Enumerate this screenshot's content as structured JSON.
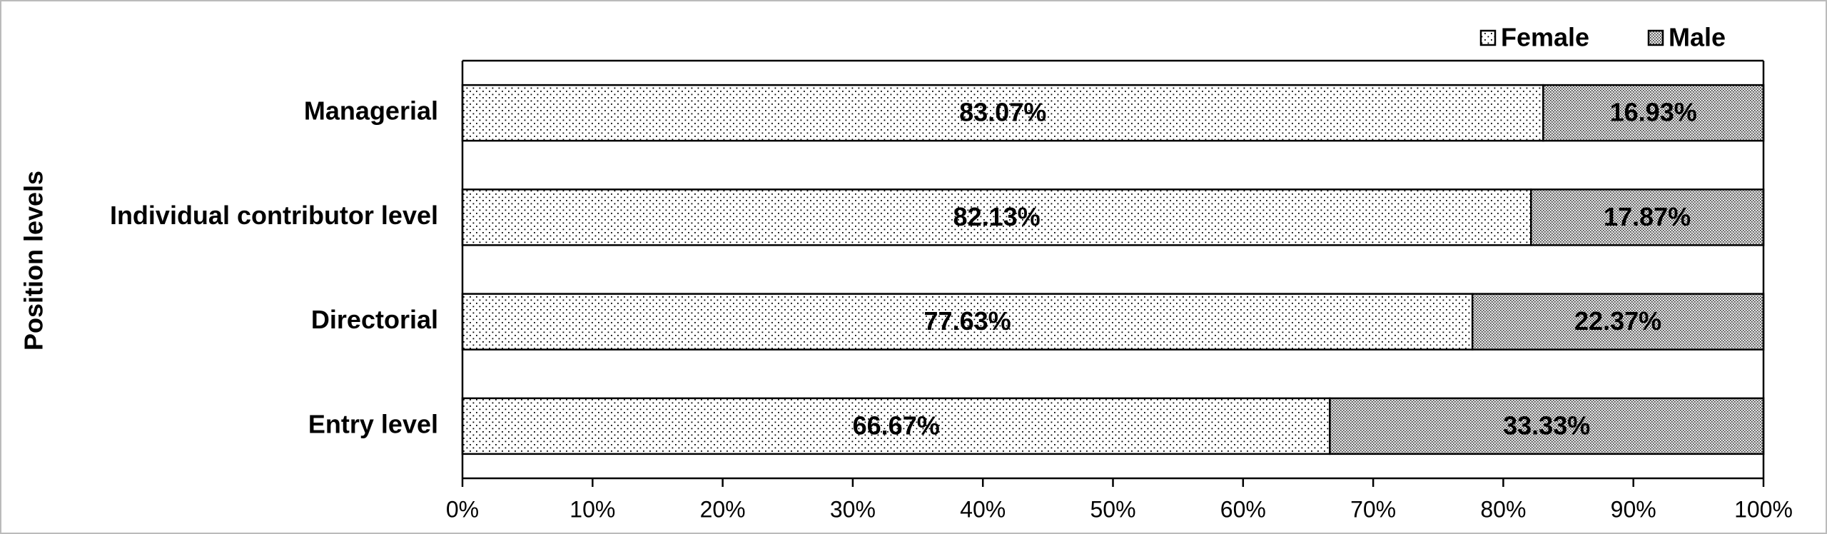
{
  "chart_data": {
    "type": "stacked-barh",
    "y_label": "Position levels",
    "categories": [
      "Managerial",
      "Individual contributor level",
      "Directorial",
      "Entry level"
    ],
    "series": [
      {
        "name": "Female",
        "color": "#000000",
        "pattern": "sparse-dots",
        "values": [
          83.07,
          82.13,
          77.63,
          66.67
        ],
        "value_labels": [
          "83.07%",
          "82.13%",
          "77.63%",
          "66.67%"
        ]
      },
      {
        "name": "Male",
        "color": "#000000",
        "pattern": "dense-dots",
        "values": [
          16.93,
          17.87,
          22.37,
          33.33
        ],
        "value_labels": [
          "16.93%",
          "17.87%",
          "22.37%",
          "33.33%"
        ]
      }
    ],
    "xlim": [
      0,
      100
    ],
    "xticks": [
      {
        "value": 0,
        "label": "0%"
      },
      {
        "value": 10,
        "label": "10%"
      },
      {
        "value": 20,
        "label": "20%"
      },
      {
        "value": 30,
        "label": "30%"
      },
      {
        "value": 40,
        "label": "40%"
      },
      {
        "value": 50,
        "label": "50%"
      },
      {
        "value": 60,
        "label": "60%"
      },
      {
        "value": 70,
        "label": "70%"
      },
      {
        "value": 80,
        "label": "80%"
      },
      {
        "value": 90,
        "label": "90%"
      },
      {
        "value": 100,
        "label": "100%"
      }
    ],
    "legend": "top-right"
  }
}
